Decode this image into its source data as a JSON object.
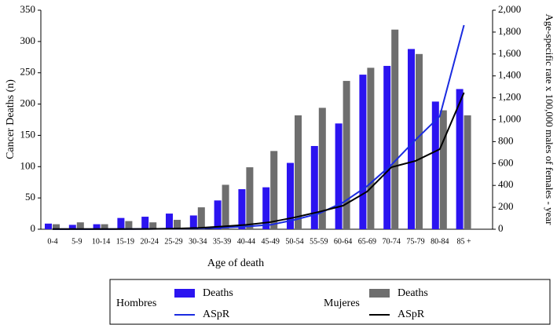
{
  "chart_data": {
    "type": "bar-line",
    "y_label": "Cancer Deaths  (n)",
    "y2_label": "Age-specific rate x 100,000 males of females - year",
    "x_label": "Age of death",
    "categories": [
      "0-4",
      "5-9",
      "10-14",
      "15-19",
      "20-24",
      "25-29",
      "30-34",
      "35-39",
      "40-44",
      "45-49",
      "50-54",
      "55-59",
      "60-64",
      "65-69",
      "70-74",
      "75-79",
      "80-84",
      "85 +"
    ],
    "ylim": [
      0,
      350
    ],
    "yticks": [
      0,
      50,
      100,
      150,
      200,
      250,
      300,
      350
    ],
    "y2lim": [
      0,
      2000
    ],
    "y2ticks": [
      0,
      200,
      400,
      600,
      800,
      {
        "value": 1000,
        "label": "1,000"
      },
      {
        "value": 1200,
        "label": "1,200"
      },
      {
        "value": 1400,
        "label": "1,400"
      },
      {
        "value": 1600,
        "label": "1,600"
      },
      {
        "value": 1800,
        "label": "1,800"
      },
      {
        "value": 2000,
        "label": "2,000"
      }
    ],
    "series": [
      {
        "group": "Hombres",
        "name": "Deaths",
        "kind": "bar",
        "color": "#2b14f0",
        "values": [
          9,
          7,
          8,
          18,
          20,
          25,
          22,
          46,
          64,
          67,
          106,
          133,
          169,
          247,
          261,
          288,
          204,
          224
        ]
      },
      {
        "group": "Hombres",
        "name": "ASpR",
        "kind": "line",
        "axis": "y2",
        "color": "#1a2be0",
        "values": [
          1,
          1,
          1,
          2,
          3,
          5,
          8,
          14,
          25,
          40,
          86,
          143,
          244,
          394,
          588,
          817,
          1032,
          1864
        ]
      },
      {
        "group": "Mujeres",
        "name": "Deaths",
        "kind": "bar",
        "color": "#6e6e6e",
        "values": [
          8,
          11,
          8,
          13,
          11,
          15,
          35,
          71,
          99,
          125,
          182,
          194,
          237,
          258,
          319,
          280,
          190,
          182
        ]
      },
      {
        "group": "Mujeres",
        "name": "ASpR",
        "kind": "line",
        "axis": "y2",
        "color": "#000000",
        "values": [
          2,
          2,
          2,
          2,
          3,
          5,
          12,
          25,
          40,
          65,
          108,
          158,
          215,
          344,
          566,
          624,
          731,
          1247
        ]
      }
    ]
  }
}
